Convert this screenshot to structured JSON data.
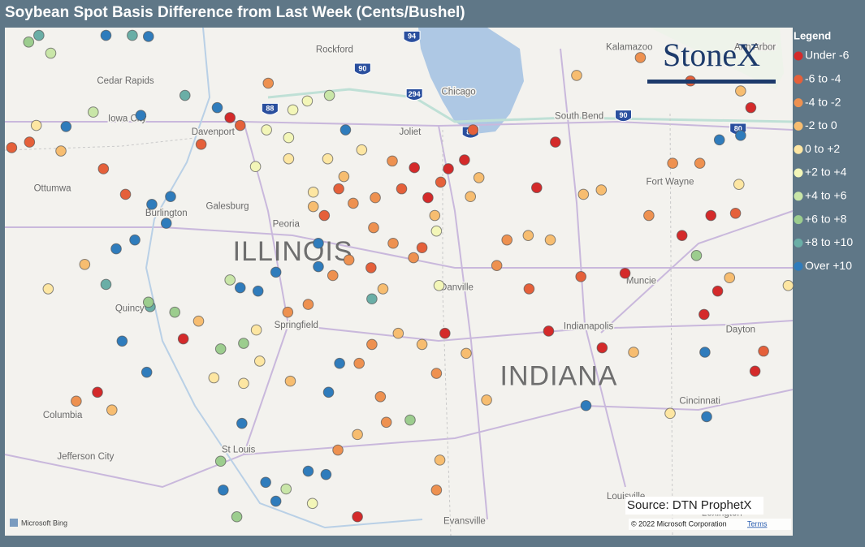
{
  "title": "Soybean Spot Basis Difference from Last Week (Cents/Bushel)",
  "legend": {
    "title": "Legend",
    "items": [
      {
        "label": "Under -6",
        "color": "#d42a2a"
      },
      {
        "label": "-6 to -4",
        "color": "#e5603a"
      },
      {
        "label": "-4 to -2",
        "color": "#ee9150"
      },
      {
        "label": "-2 to 0",
        "color": "#f7bd70"
      },
      {
        "label": "0 to +2",
        "color": "#fde6a2"
      },
      {
        "label": "+2 to +4",
        "color": "#f3f6b8"
      },
      {
        "label": "+4 to +6",
        "color": "#c9e6a8"
      },
      {
        "label": "+6 to +8",
        "color": "#9ccd8e"
      },
      {
        "label": "+8 to +10",
        "color": "#6aaea6"
      },
      {
        "label": "Over +10",
        "color": "#2f7cbc"
      }
    ]
  },
  "logo": "StoneX",
  "source": "Source: DTN ProphetX",
  "attribution": {
    "provider": "Microsoft Bing",
    "copyright": "© 2022 Microsoft Corporation",
    "terms": "Terms"
  },
  "states": [
    {
      "name": "ILLINOIS",
      "lon": -89.46,
      "lat": 40.43
    },
    {
      "name": "INDIANA",
      "lon": -86.33,
      "lat": 39.31
    }
  ],
  "cities": [
    {
      "name": "Rockford",
      "lon": -88.97,
      "lat": 42.26
    },
    {
      "name": "Chicago",
      "lon": -87.51,
      "lat": 41.88
    },
    {
      "name": "Cedar Rapids",
      "lon": -91.43,
      "lat": 41.98
    },
    {
      "name": "Iowa City",
      "lon": -91.41,
      "lat": 41.64
    },
    {
      "name": "Davenport",
      "lon": -90.4,
      "lat": 41.52
    },
    {
      "name": "Joliet",
      "lon": -88.08,
      "lat": 41.52
    },
    {
      "name": "South Bend",
      "lon": -86.09,
      "lat": 41.66
    },
    {
      "name": "Kalamazoo",
      "lon": -85.5,
      "lat": 42.28
    },
    {
      "name": "Ann Arbor",
      "lon": -84.02,
      "lat": 42.28
    },
    {
      "name": "Ottumwa",
      "lon": -92.29,
      "lat": 41.01
    },
    {
      "name": "Burlington",
      "lon": -90.95,
      "lat": 40.79
    },
    {
      "name": "Galesburg",
      "lon": -90.23,
      "lat": 40.85
    },
    {
      "name": "Peoria",
      "lon": -89.54,
      "lat": 40.69
    },
    {
      "name": "Fort Wayne",
      "lon": -85.02,
      "lat": 41.07
    },
    {
      "name": "Muncie",
      "lon": -85.36,
      "lat": 40.18
    },
    {
      "name": "Danville",
      "lon": -87.53,
      "lat": 40.12
    },
    {
      "name": "Springfield",
      "lon": -89.42,
      "lat": 39.78
    },
    {
      "name": "Indianapolis",
      "lon": -85.98,
      "lat": 39.77
    },
    {
      "name": "Dayton",
      "lon": -84.19,
      "lat": 39.74
    },
    {
      "name": "Quincy",
      "lon": -91.38,
      "lat": 39.93
    },
    {
      "name": "Columbia",
      "lon": -92.17,
      "lat": 38.97
    },
    {
      "name": "Jefferson City",
      "lon": -91.9,
      "lat": 38.6
    },
    {
      "name": "St Louis",
      "lon": -90.1,
      "lat": 38.66
    },
    {
      "name": "Cincinnati",
      "lon": -84.67,
      "lat": 39.1
    },
    {
      "name": "Louisville",
      "lon": -85.54,
      "lat": 38.24
    },
    {
      "name": "Lexington",
      "lon": -84.41,
      "lat": 38.09
    },
    {
      "name": "Evansville",
      "lon": -87.44,
      "lat": 38.02
    }
  ],
  "highways": [
    {
      "name": "94",
      "lon": -88.06,
      "lat": 42.37
    },
    {
      "name": "90",
      "lon": -88.64,
      "lat": 42.08
    },
    {
      "name": "294",
      "lon": -88.03,
      "lat": 41.85
    },
    {
      "name": "88",
      "lon": -89.73,
      "lat": 41.72
    },
    {
      "name": "80",
      "lon": -87.37,
      "lat": 41.51
    },
    {
      "name": "90",
      "lon": -85.57,
      "lat": 41.66
    },
    {
      "name": "80",
      "lon": -84.22,
      "lat": 41.54
    }
  ],
  "points": [
    [
      -92.57,
      42.33,
      7
    ],
    [
      -92.31,
      42.23,
      6
    ],
    [
      -91.66,
      42.39,
      9
    ],
    [
      -91.35,
      42.39,
      8
    ],
    [
      -91.16,
      42.38,
      9
    ],
    [
      -92.13,
      41.57,
      9
    ],
    [
      -91.25,
      41.67,
      9
    ],
    [
      -91.81,
      41.7,
      6
    ],
    [
      -92.48,
      41.58,
      4
    ],
    [
      -92.77,
      41.38,
      1
    ],
    [
      -92.19,
      41.35,
      3
    ],
    [
      -91.69,
      41.19,
      1
    ],
    [
      -91.43,
      40.96,
      1
    ],
    [
      -91.12,
      40.87,
      9
    ],
    [
      -90.9,
      40.94,
      9
    ],
    [
      -90.95,
      40.7,
      9
    ],
    [
      -91.32,
      40.55,
      9
    ],
    [
      -91.54,
      40.47,
      9
    ],
    [
      -91.66,
      40.15,
      8
    ],
    [
      -91.47,
      39.64,
      9
    ],
    [
      -91.18,
      39.36,
      9
    ],
    [
      -90.75,
      39.66,
      0
    ],
    [
      -91.76,
      39.18,
      0
    ],
    [
      -92.01,
      39.1,
      2
    ],
    [
      -91.59,
      39.02,
      3
    ],
    [
      -92.34,
      40.11,
      4
    ],
    [
      -91.91,
      40.33,
      3
    ],
    [
      -90.85,
      39.9,
      7
    ],
    [
      -91.14,
      39.95,
      8
    ],
    [
      -91.16,
      39.99,
      7
    ],
    [
      -90.57,
      39.82,
      3
    ],
    [
      -90.2,
      40.19,
      6
    ],
    [
      -90.08,
      40.12,
      9
    ],
    [
      -89.87,
      40.09,
      9
    ],
    [
      -89.66,
      40.26,
      9
    ],
    [
      -89.16,
      40.52,
      9
    ],
    [
      -89.16,
      40.31,
      9
    ],
    [
      -90.35,
      41.74,
      9
    ],
    [
      -90.54,
      41.41,
      1
    ],
    [
      -90.2,
      41.65,
      0
    ],
    [
      -90.08,
      41.58,
      1
    ],
    [
      -89.9,
      41.21,
      5
    ],
    [
      -89.51,
      41.47,
      5
    ],
    [
      -89.29,
      41.8,
      5
    ],
    [
      -89.03,
      41.85,
      6
    ],
    [
      -88.84,
      41.54,
      9
    ],
    [
      -89.75,
      41.96,
      2
    ],
    [
      -88.86,
      41.12,
      3
    ],
    [
      -88.65,
      41.36,
      4
    ],
    [
      -88.29,
      41.26,
      2
    ],
    [
      -88.03,
      41.2,
      0
    ],
    [
      -87.63,
      41.19,
      0
    ],
    [
      -87.44,
      41.27,
      0
    ],
    [
      -87.34,
      41.54,
      1
    ],
    [
      -87.87,
      40.93,
      0
    ],
    [
      -88.18,
      41.01,
      1
    ],
    [
      -88.49,
      40.93,
      2
    ],
    [
      -88.75,
      40.88,
      2
    ],
    [
      -89.09,
      40.77,
      1
    ],
    [
      -88.51,
      40.66,
      2
    ],
    [
      -88.28,
      40.52,
      2
    ],
    [
      -88.04,
      40.39,
      2
    ],
    [
      -87.94,
      40.48,
      1
    ],
    [
      -87.77,
      40.63,
      5
    ],
    [
      -87.79,
      40.77,
      3
    ],
    [
      -88.8,
      40.37,
      2
    ],
    [
      -88.99,
      40.23,
      2
    ],
    [
      -89.28,
      39.97,
      2
    ],
    [
      -89.52,
      39.9,
      2
    ],
    [
      -89.89,
      39.74,
      4
    ],
    [
      -90.04,
      39.62,
      7
    ],
    [
      -90.31,
      39.57,
      7
    ],
    [
      -89.85,
      39.46,
      4
    ],
    [
      -90.39,
      39.31,
      4
    ],
    [
      -90.04,
      39.26,
      4
    ],
    [
      -89.49,
      39.28,
      3
    ],
    [
      -88.91,
      39.44,
      9
    ],
    [
      -89.04,
      39.18,
      9
    ],
    [
      -88.68,
      39.44,
      2
    ],
    [
      -88.53,
      39.61,
      2
    ],
    [
      -88.22,
      39.71,
      3
    ],
    [
      -87.94,
      39.61,
      3
    ],
    [
      -87.67,
      39.71,
      0
    ],
    [
      -88.43,
      39.14,
      2
    ],
    [
      -88.08,
      38.93,
      7
    ],
    [
      -88.36,
      38.91,
      2
    ],
    [
      -88.7,
      38.8,
      3
    ],
    [
      -88.93,
      38.66,
      2
    ],
    [
      -89.28,
      38.47,
      9
    ],
    [
      -89.07,
      38.44,
      9
    ],
    [
      -89.54,
      38.31,
      6
    ],
    [
      -89.78,
      38.37,
      9
    ],
    [
      -90.06,
      38.9,
      9
    ],
    [
      -90.31,
      38.56,
      7
    ],
    [
      -90.28,
      38.3,
      9
    ],
    [
      -90.12,
      38.06,
      7
    ],
    [
      -89.66,
      38.2,
      9
    ],
    [
      -89.23,
      38.18,
      5
    ],
    [
      -88.7,
      38.06,
      0
    ],
    [
      -87.77,
      38.3,
      2
    ],
    [
      -87.73,
      38.57,
      3
    ],
    [
      -87.77,
      39.35,
      2
    ],
    [
      -87.42,
      39.53,
      3
    ],
    [
      -87.18,
      39.11,
      3
    ],
    [
      -87.06,
      40.32,
      2
    ],
    [
      -86.94,
      40.55,
      2
    ],
    [
      -87.37,
      40.94,
      3
    ],
    [
      -87.27,
      41.11,
      3
    ],
    [
      -86.59,
      41.02,
      0
    ],
    [
      -86.37,
      41.43,
      0
    ],
    [
      -86.04,
      40.96,
      3
    ],
    [
      -85.83,
      41.0,
      3
    ],
    [
      -86.68,
      40.11,
      1
    ],
    [
      -86.69,
      40.59,
      3
    ],
    [
      -86.43,
      40.55,
      3
    ],
    [
      -86.07,
      40.22,
      1
    ],
    [
      -86.45,
      39.73,
      0
    ],
    [
      -85.82,
      39.58,
      0
    ],
    [
      -85.45,
      39.54,
      3
    ],
    [
      -85.27,
      40.77,
      2
    ],
    [
      -84.88,
      40.59,
      0
    ],
    [
      -85.55,
      40.25,
      0
    ],
    [
      -84.71,
      40.41,
      7
    ],
    [
      -84.62,
      39.88,
      0
    ],
    [
      -84.46,
      40.09,
      0
    ],
    [
      -84.32,
      40.21,
      3
    ],
    [
      -84.25,
      40.79,
      1
    ],
    [
      -84.21,
      41.05,
      4
    ],
    [
      -84.54,
      40.77,
      0
    ],
    [
      -84.67,
      41.24,
      2
    ],
    [
      -84.44,
      41.45,
      9
    ],
    [
      -84.19,
      41.49,
      9
    ],
    [
      -84.99,
      41.24,
      2
    ],
    [
      -84.61,
      39.54,
      9
    ],
    [
      -83.92,
      39.55,
      1
    ],
    [
      -84.02,
      39.37,
      0
    ],
    [
      -84.59,
      38.96,
      9
    ],
    [
      -86.01,
      39.06,
      9
    ],
    [
      -85.02,
      38.99,
      4
    ],
    [
      -83.63,
      40.14,
      4
    ],
    [
      -84.07,
      41.74,
      0
    ],
    [
      -84.78,
      41.98,
      1
    ],
    [
      -86.12,
      42.03,
      3
    ],
    [
      -85.37,
      42.19,
      2
    ],
    [
      -84.19,
      41.89,
      3
    ],
    [
      -92.56,
      41.43,
      1
    ],
    [
      -92.45,
      42.39,
      8
    ],
    [
      -90.73,
      41.85,
      8
    ],
    [
      -89.77,
      41.54,
      5
    ],
    [
      -89.46,
      41.72,
      5
    ],
    [
      -89.51,
      41.28,
      4
    ],
    [
      -89.05,
      41.28,
      4
    ],
    [
      -89.22,
      40.98,
      4
    ],
    [
      -89.22,
      40.85,
      3
    ],
    [
      -88.54,
      40.3,
      1
    ],
    [
      -88.4,
      40.11,
      3
    ],
    [
      -87.74,
      40.14,
      5
    ],
    [
      -88.53,
      40.02,
      8
    ],
    [
      -88.92,
      41.01,
      1
    ],
    [
      -87.72,
      41.07,
      1
    ]
  ]
}
